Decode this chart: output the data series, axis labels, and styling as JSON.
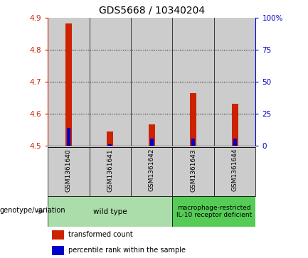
{
  "title": "GDS5668 / 10340204",
  "samples": [
    "GSM1361640",
    "GSM1361641",
    "GSM1361642",
    "GSM1361643",
    "GSM1361644"
  ],
  "red_values": [
    4.882,
    4.545,
    4.568,
    4.665,
    4.632
  ],
  "blue_values": [
    4.555,
    4.505,
    4.522,
    4.523,
    4.522
  ],
  "ylim_left": [
    4.5,
    4.9
  ],
  "ylim_right": [
    0,
    100
  ],
  "yticks_left": [
    4.5,
    4.6,
    4.7,
    4.8,
    4.9
  ],
  "yticks_right": [
    0,
    25,
    50,
    75,
    100
  ],
  "bar_base": 4.5,
  "groups": [
    {
      "label": "wild type",
      "samples": [
        0,
        1,
        2
      ],
      "color": "#aaddaa"
    },
    {
      "label": "macrophage-restricted\nIL-10 receptor deficient",
      "samples": [
        3,
        4
      ],
      "color": "#55cc55"
    }
  ],
  "left_axis_color": "#cc2200",
  "right_axis_color": "#0000cc",
  "bar_bg_color": "#cccccc",
  "legend_red_label": "transformed count",
  "legend_blue_label": "percentile rank within the sample",
  "red_bar_color": "#cc2200",
  "blue_bar_color": "#0000cc",
  "title_fontsize": 10,
  "tick_fontsize": 7.5,
  "sample_fontsize": 6.5,
  "group_fontsize": 7.5,
  "legend_fontsize": 7
}
